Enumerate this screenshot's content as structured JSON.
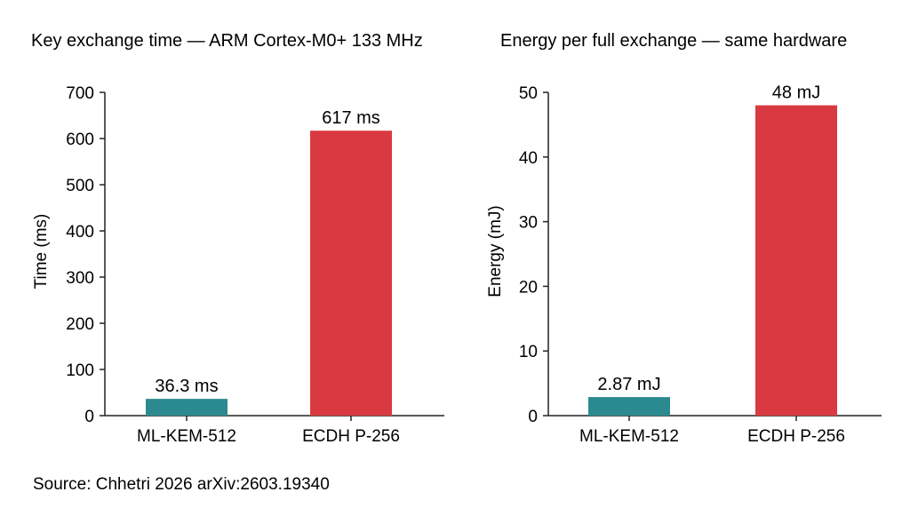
{
  "source": "Source: Chhetri 2026  arXiv:2603.19340",
  "colors": {
    "ml_kem": "#2b8a8f",
    "ecdh": "#d93a41",
    "axis": "#222222"
  },
  "chart_data": [
    {
      "type": "bar",
      "title": "Key exchange time — ARM Cortex-M0+ 133 MHz",
      "ylabel": "Time (ms)",
      "xlabel": "",
      "categories": [
        "ML-KEM-512",
        "ECDH P-256"
      ],
      "values": [
        36.3,
        617
      ],
      "data_labels": [
        "36.3 ms",
        "617 ms"
      ],
      "ylim": [
        0,
        700
      ],
      "yticks": [
        0,
        100,
        200,
        300,
        400,
        500,
        600,
        700
      ],
      "grid": false,
      "bar_colors": [
        "#2b8a8f",
        "#d93a41"
      ]
    },
    {
      "type": "bar",
      "title": "Energy per full exchange — same hardware",
      "ylabel": "Energy (mJ)",
      "xlabel": "",
      "categories": [
        "ML-KEM-512",
        "ECDH P-256"
      ],
      "values": [
        2.87,
        48
      ],
      "data_labels": [
        "2.87 mJ",
        "48 mJ"
      ],
      "ylim": [
        0,
        50
      ],
      "yticks": [
        0,
        10,
        20,
        30,
        40,
        50
      ],
      "grid": false,
      "bar_colors": [
        "#2b8a8f",
        "#d93a41"
      ]
    }
  ]
}
